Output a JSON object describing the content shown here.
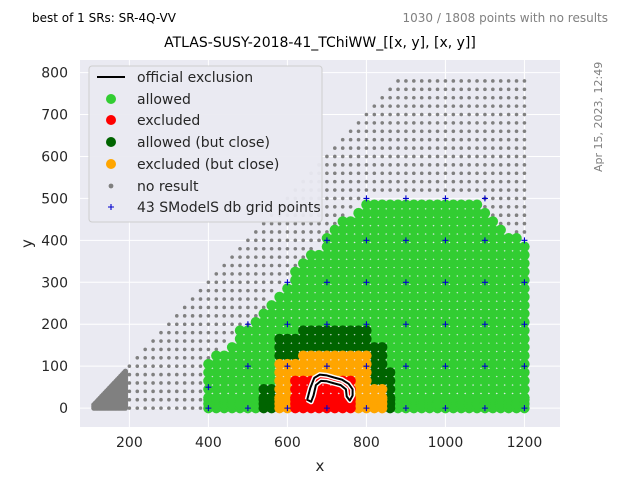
{
  "header": {
    "left_note": "best of 1 SRs: SR-4Q-VV",
    "right_note": "1030 / 1808 points with no results",
    "side_date": "Apr 15, 2023, 12:49"
  },
  "chart_data": {
    "type": "scatter",
    "title": "ATLAS-SUSY-2018-41_TChiWW_[[x, y], [x, y]]",
    "xlabel": "x",
    "ylabel": "y",
    "xlim": [
      75,
      1290
    ],
    "ylim": [
      -45,
      830
    ],
    "xticks": [
      200,
      400,
      600,
      800,
      1000,
      1200
    ],
    "yticks": [
      0,
      100,
      200,
      300,
      400,
      500,
      600,
      700,
      800
    ],
    "grid": true,
    "legend_position": "top-left",
    "colors": {
      "allowed": "#32cd32",
      "excluded": "#ff0000",
      "allowed_close": "#006400",
      "excluded_close": "#ffa500",
      "no_result": "#808080",
      "db_grid": "#0000cd",
      "exclusion_line": "#000000"
    },
    "legend": [
      {
        "key": "official",
        "label": "official exclusion"
      },
      {
        "key": "allowed",
        "label": "allowed"
      },
      {
        "key": "excluded",
        "label": "excluded"
      },
      {
        "key": "allowed_close",
        "label": "allowed (but close)"
      },
      {
        "key": "excluded_close",
        "label": "excluded (but close)"
      },
      {
        "key": "no_result",
        "label": "no result"
      },
      {
        "key": "db_grid",
        "label": "43 SModelS db grid points"
      }
    ],
    "official_exclusion_curve": [
      [
        650,
        20
      ],
      [
        658,
        48
      ],
      [
        668,
        72
      ],
      [
        682,
        80
      ],
      [
        700,
        78
      ],
      [
        718,
        73
      ],
      [
        738,
        68
      ],
      [
        755,
        58
      ],
      [
        765,
        45
      ],
      [
        765,
        30
      ],
      [
        758,
        18
      ],
      [
        750,
        28
      ],
      [
        748,
        45
      ],
      [
        735,
        55
      ],
      [
        715,
        60
      ],
      [
        700,
        64
      ],
      [
        685,
        65
      ],
      [
        672,
        55
      ],
      [
        666,
        30
      ],
      [
        660,
        15
      ],
      [
        650,
        20
      ]
    ],
    "db_grid_points": [
      [
        400,
        50
      ],
      [
        400,
        0
      ],
      [
        500,
        200
      ],
      [
        500,
        100
      ],
      [
        500,
        0
      ],
      [
        600,
        300
      ],
      [
        600,
        200
      ],
      [
        600,
        100
      ],
      [
        600,
        0
      ],
      [
        700,
        400
      ],
      [
        700,
        300
      ],
      [
        700,
        200
      ],
      [
        700,
        100
      ],
      [
        700,
        0
      ],
      [
        800,
        500
      ],
      [
        800,
        400
      ],
      [
        800,
        300
      ],
      [
        800,
        200
      ],
      [
        800,
        100
      ],
      [
        800,
        0
      ],
      [
        900,
        500
      ],
      [
        900,
        400
      ],
      [
        900,
        300
      ],
      [
        900,
        200
      ],
      [
        900,
        100
      ],
      [
        900,
        0
      ],
      [
        1000,
        500
      ],
      [
        1000,
        400
      ],
      [
        1000,
        300
      ],
      [
        1000,
        200
      ],
      [
        1000,
        100
      ],
      [
        1000,
        0
      ],
      [
        1100,
        500
      ],
      [
        1100,
        400
      ],
      [
        1100,
        300
      ],
      [
        1100,
        200
      ],
      [
        1100,
        100
      ],
      [
        1100,
        0
      ],
      [
        1200,
        400
      ],
      [
        1200,
        300
      ],
      [
        1200,
        200
      ],
      [
        1200,
        100
      ],
      [
        1200,
        0
      ]
    ],
    "allowed_region_envelope": {
      "x": [
        400,
        440,
        480,
        520,
        560,
        600,
        640,
        680,
        720,
        760,
        800,
        840,
        880,
        920,
        960,
        1000,
        1040,
        1080,
        1120,
        1160,
        1200
      ],
      "y_max": [
        110,
        140,
        185,
        205,
        260,
        300,
        350,
        380,
        430,
        460,
        500,
        500,
        500,
        500,
        500,
        500,
        500,
        500,
        450,
        420,
        400
      ]
    },
    "excluded_close_region": {
      "x_min": 580,
      "x_max": 840,
      "y_max": [
        [
          "580-640",
          105
        ],
        [
          "640-800",
          140
        ],
        [
          "800-840",
          60
        ]
      ]
    },
    "allowed_close_region": {
      "x_min": 540,
      "x_max": 860,
      "y_max": 200
    },
    "excluded_region": {
      "x_min": 620,
      "x_max": 770,
      "y_max": 80
    },
    "no_result_region": "all remaining points of the grid with y <= x - 85, y <= 780, x <= 1200, outside the coloured region"
  }
}
